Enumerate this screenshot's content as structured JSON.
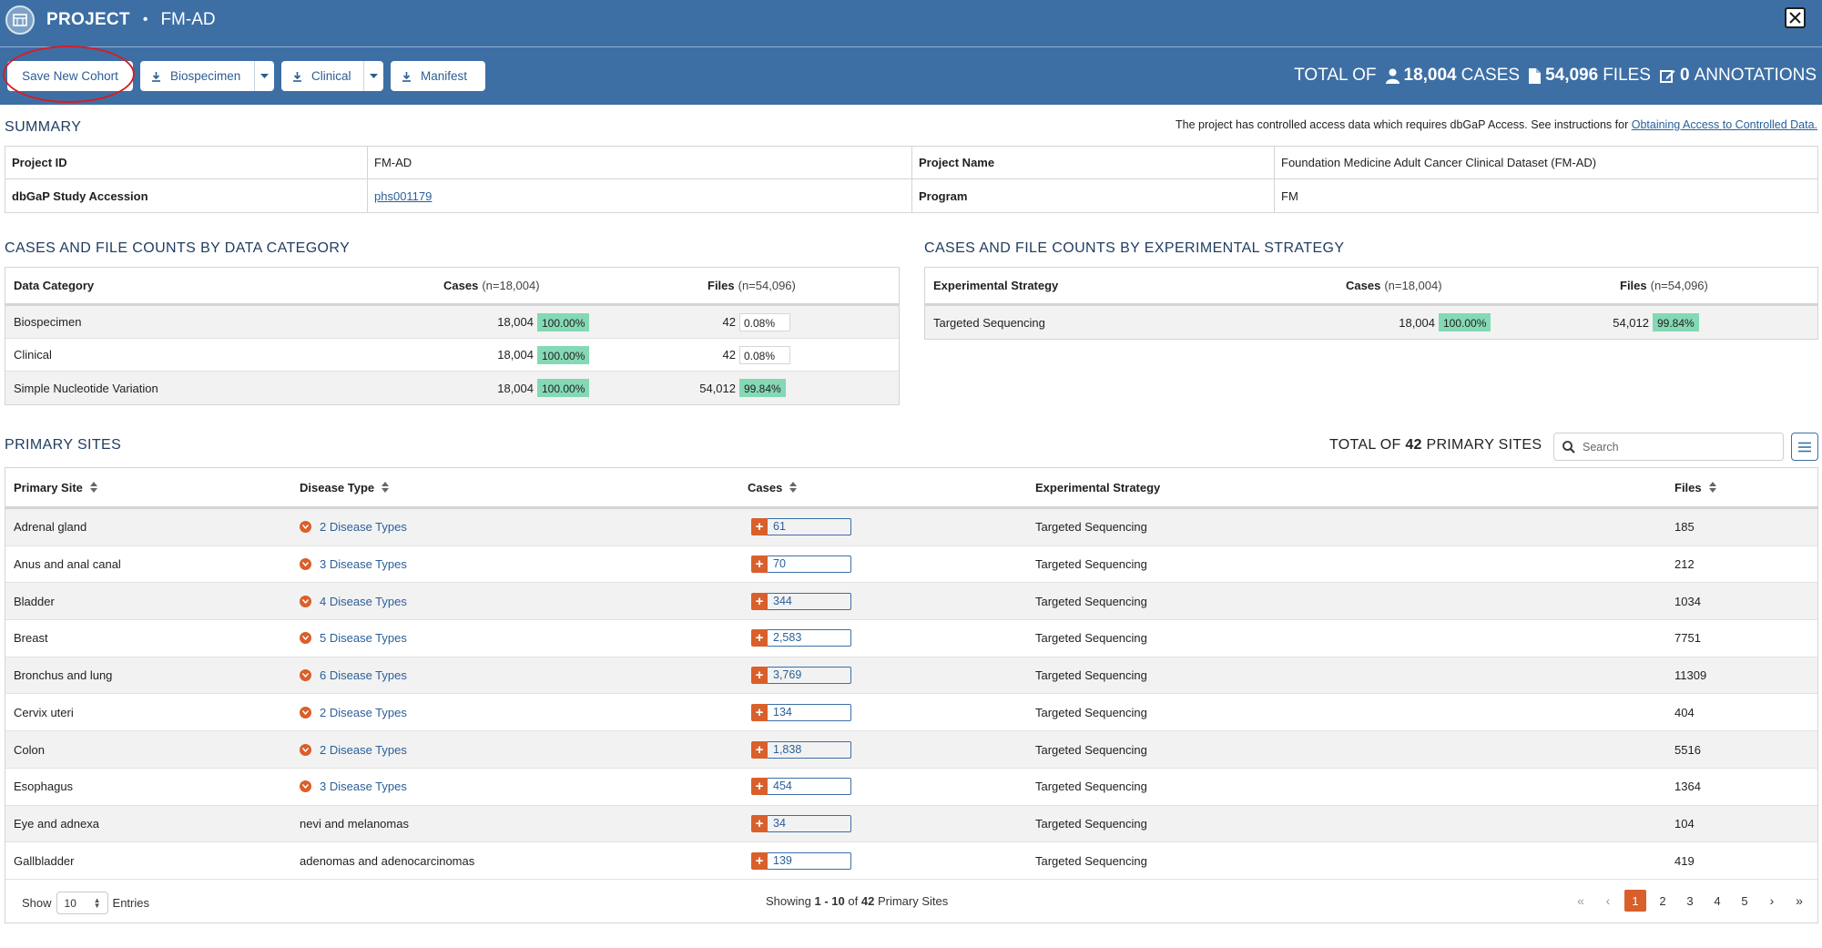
{
  "header": {
    "title_prefix": "PROJECT",
    "separator": "•",
    "project_id": "FM-AD",
    "buttons": {
      "save_cohort": "Save New Cohort",
      "biospecimen": "Biospecimen",
      "clinical": "Clinical",
      "manifest": "Manifest"
    },
    "totals": {
      "prefix": "TOTAL OF",
      "cases_value": "18,004",
      "cases_label": "CASES",
      "files_value": "54,096",
      "files_label": "FILES",
      "annotations_value": "0",
      "annotations_label": "ANNOTATIONS"
    }
  },
  "summary": {
    "heading": "SUMMARY",
    "access_note": "The project has controlled access data which requires dbGaP Access. See instructions for",
    "access_link": "Obtaining Access to Controlled Data.",
    "rows": [
      {
        "label1": "Project ID",
        "value1": "FM-AD",
        "label2": "Project Name",
        "value2": "Foundation Medicine Adult Cancer Clinical Dataset (FM-AD)"
      },
      {
        "label1": "dbGaP Study Accession",
        "value1": "phs001179",
        "label2": "Program",
        "value2": "FM"
      }
    ]
  },
  "data_category": {
    "heading": "CASES AND FILE COUNTS BY DATA CATEGORY",
    "col_category": "Data Category",
    "col_cases": "Cases",
    "col_cases_n": "(n=18,004)",
    "col_files": "Files",
    "col_files_n": "(n=54,096)",
    "rows": [
      {
        "category": "Biospecimen",
        "cases": "18,004",
        "cases_pct": "100.00%",
        "files": "42",
        "files_pct": "0.08%"
      },
      {
        "category": "Clinical",
        "cases": "18,004",
        "cases_pct": "100.00%",
        "files": "42",
        "files_pct": "0.08%"
      },
      {
        "category": "Simple Nucleotide Variation",
        "cases": "18,004",
        "cases_pct": "100.00%",
        "files": "54,012",
        "files_pct": "99.84%"
      }
    ]
  },
  "exp_strategy": {
    "heading": "CASES AND FILE COUNTS BY EXPERIMENTAL STRATEGY",
    "col_strategy": "Experimental Strategy",
    "col_cases": "Cases",
    "col_cases_n": "(n=18,004)",
    "col_files": "Files",
    "col_files_n": "(n=54,096)",
    "rows": [
      {
        "strategy": "Targeted Sequencing",
        "cases": "18,004",
        "cases_pct": "100.00%",
        "files": "54,012",
        "files_pct": "99.84%"
      }
    ]
  },
  "primary_sites": {
    "heading": "PRIMARY SITES",
    "total_prefix": "TOTAL OF",
    "total_value": "42",
    "total_suffix": "PRIMARY SITES",
    "search_placeholder": "Search",
    "columns": {
      "site": "Primary Site",
      "disease": "Disease Type",
      "cases": "Cases",
      "strategy": "Experimental Strategy",
      "files": "Files"
    },
    "rows": [
      {
        "site": "Adrenal gland",
        "disease": "2 Disease Types",
        "disease_link": true,
        "cases": "61",
        "strategy": "Targeted Sequencing",
        "files": "185"
      },
      {
        "site": "Anus and anal canal",
        "disease": "3 Disease Types",
        "disease_link": true,
        "cases": "70",
        "strategy": "Targeted Sequencing",
        "files": "212"
      },
      {
        "site": "Bladder",
        "disease": "4 Disease Types",
        "disease_link": true,
        "cases": "344",
        "strategy": "Targeted Sequencing",
        "files": "1034"
      },
      {
        "site": "Breast",
        "disease": "5 Disease Types",
        "disease_link": true,
        "cases": "2,583",
        "strategy": "Targeted Sequencing",
        "files": "7751"
      },
      {
        "site": "Bronchus and lung",
        "disease": "6 Disease Types",
        "disease_link": true,
        "cases": "3,769",
        "strategy": "Targeted Sequencing",
        "files": "11309"
      },
      {
        "site": "Cervix uteri",
        "disease": "2 Disease Types",
        "disease_link": true,
        "cases": "134",
        "strategy": "Targeted Sequencing",
        "files": "404"
      },
      {
        "site": "Colon",
        "disease": "2 Disease Types",
        "disease_link": true,
        "cases": "1,838",
        "strategy": "Targeted Sequencing",
        "files": "5516"
      },
      {
        "site": "Esophagus",
        "disease": "3 Disease Types",
        "disease_link": true,
        "cases": "454",
        "strategy": "Targeted Sequencing",
        "files": "1364"
      },
      {
        "site": "Eye and adnexa",
        "disease": "nevi and melanomas",
        "disease_link": false,
        "cases": "34",
        "strategy": "Targeted Sequencing",
        "files": "104"
      },
      {
        "site": "Gallbladder",
        "disease": "adenomas and adenocarcinomas",
        "disease_link": false,
        "cases": "139",
        "strategy": "Targeted Sequencing",
        "files": "419"
      }
    ],
    "footer": {
      "show_label": "Show",
      "page_size": "10",
      "entries_label": "Entries",
      "showing_prefix": "Showing",
      "showing_range": "1 - 10",
      "showing_of": "of",
      "showing_total": "42",
      "showing_suffix": "Primary Sites",
      "pages": [
        "1",
        "2",
        "3",
        "4",
        "5"
      ],
      "current_page": "1",
      "nav": {
        "first": "«",
        "prev": "‹",
        "next": "›",
        "last": "»"
      }
    }
  },
  "colors": {
    "header_bg": "#3d6fa5",
    "accent_orange": "#d95f2b",
    "pct_green": "#84d9b4",
    "link_blue": "#2a5f9a",
    "highlight_ring": "#d31f26"
  },
  "icons": [
    "project-logo-icon",
    "close-icon",
    "download-icon",
    "caret-down-icon",
    "user-icon",
    "file-icon",
    "edit-icon",
    "search-icon",
    "menu-icon",
    "chevron-down-circle-icon",
    "plus-icon",
    "sort-icon"
  ]
}
